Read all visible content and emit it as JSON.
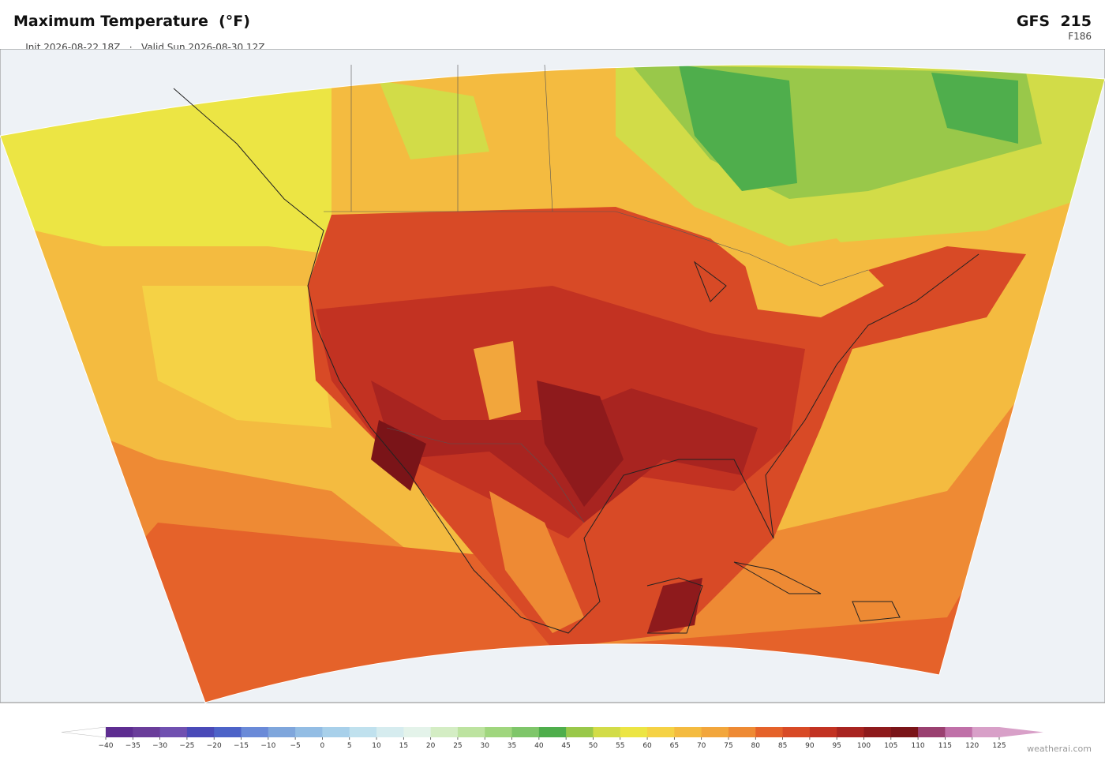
{
  "header": {
    "title": "Maximum Temperature  (°F)",
    "init": "Init 2026-08-22 18Z",
    "separator": "·",
    "valid": "Valid Sun 2026-08-30 12Z",
    "model": "GFS  215",
    "forecast_hour": "F186"
  },
  "colorbar": {
    "ticks": [
      "−40",
      "−35",
      "−30",
      "−25",
      "−20",
      "−15",
      "−10",
      "−5",
      "0",
      "5",
      "10",
      "15",
      "20",
      "25",
      "30",
      "35",
      "40",
      "45",
      "50",
      "55",
      "60",
      "65",
      "70",
      "75",
      "80",
      "85",
      "90",
      "95",
      "100",
      "105",
      "110",
      "115",
      "120",
      "125"
    ],
    "colors": [
      "#5e2d91",
      "#6a3d9a",
      "#7050b0",
      "#4a4ab8",
      "#4d63c8",
      "#6a8ad8",
      "#7fa6dc",
      "#93bde4",
      "#a8d0ea",
      "#c0e1ee",
      "#d6ecef",
      "#e4f3ea",
      "#d4edc4",
      "#bde3a0",
      "#a0d67e",
      "#7fc66a",
      "#4fae4c",
      "#99c84a",
      "#d2dc48",
      "#ece544",
      "#f5d245",
      "#f4bb40",
      "#f2a63c",
      "#ee8a34",
      "#e5622a",
      "#d84a26",
      "#c23222",
      "#a82420",
      "#8e1a1c",
      "#7a1418",
      "#9a4070",
      "#c070a8",
      "#d8a0c8"
    ],
    "under_color": "#ffffff",
    "over_color": "#d8a0c8"
  },
  "footer": {
    "credit": "weatherai.com"
  }
}
